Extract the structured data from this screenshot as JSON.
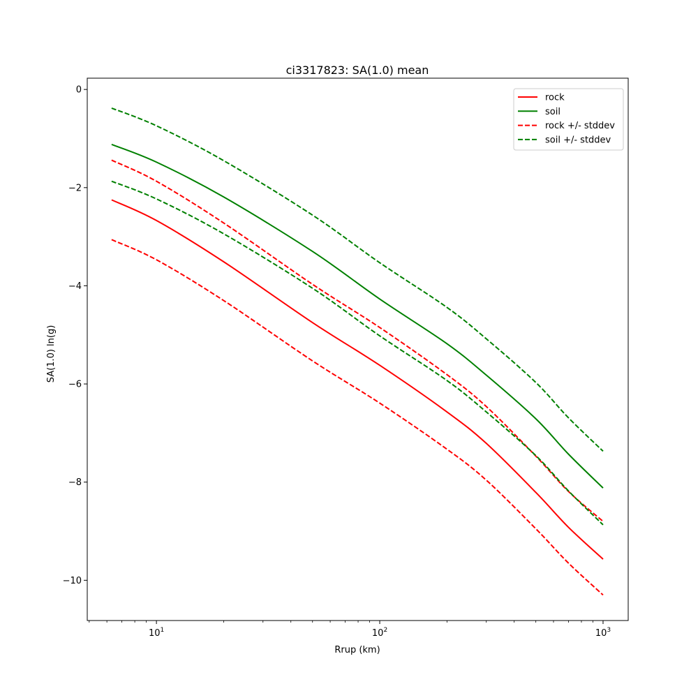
{
  "chart_data": {
    "type": "line",
    "title": "ci3317823: SA(1.0) mean",
    "xlabel": "Rrup (km)",
    "ylabel": "SA(1.0) ln(g)",
    "xscale": "log",
    "xlim": [
      4.9,
      1296
    ],
    "ylim": [
      -10.82,
      0.23
    ],
    "xticks": [
      {
        "value": 10,
        "base": "10",
        "exp": "1"
      },
      {
        "value": 100,
        "base": "10",
        "exp": "2"
      },
      {
        "value": 1000,
        "base": "10",
        "exp": "3"
      }
    ],
    "yticks": [
      {
        "value": 0,
        "label": "0"
      },
      {
        "value": -2,
        "label": "−2"
      },
      {
        "value": -4,
        "label": "−4"
      },
      {
        "value": -6,
        "label": "−6"
      },
      {
        "value": -8,
        "label": "−8"
      },
      {
        "value": -10,
        "label": "−10"
      }
    ],
    "grid": false,
    "legend_position": "top-right",
    "x": [
      6.3,
      10,
      20,
      50,
      100,
      200,
      300,
      500,
      700,
      1000
    ],
    "series": [
      {
        "name": "rock",
        "legend": true,
        "color": "#ff0000",
        "dash": false,
        "values": [
          -2.25,
          -2.67,
          -3.51,
          -4.75,
          -5.62,
          -6.57,
          -7.21,
          -8.21,
          -8.92,
          -9.57
        ]
      },
      {
        "name": "soil",
        "legend": true,
        "color": "#008000",
        "dash": false,
        "values": [
          -1.12,
          -1.48,
          -2.19,
          -3.3,
          -4.27,
          -5.18,
          -5.82,
          -6.71,
          -7.43,
          -8.12
        ]
      },
      {
        "name": "rock +/- stddev",
        "legend": true,
        "color": "#ff0000",
        "dash": true,
        "values": [
          -1.44,
          -1.87,
          -2.72,
          -3.97,
          -4.85,
          -5.81,
          -6.46,
          -7.47,
          -8.19,
          -8.8
        ]
      },
      {
        "name": "soil +/- stddev",
        "legend": true,
        "color": "#008000",
        "dash": true,
        "values": [
          -0.38,
          -0.74,
          -1.45,
          -2.56,
          -3.53,
          -4.44,
          -5.08,
          -5.97,
          -6.69,
          -7.37
        ]
      },
      {
        "name": "rock - stddev",
        "legend": false,
        "color": "#ff0000",
        "dash": true,
        "values": [
          -3.06,
          -3.47,
          -4.3,
          -5.53,
          -6.39,
          -7.33,
          -7.96,
          -8.95,
          -9.65,
          -10.3
        ]
      },
      {
        "name": "soil - stddev",
        "legend": false,
        "color": "#008000",
        "dash": true,
        "values": [
          -1.87,
          -2.23,
          -2.94,
          -4.05,
          -5.02,
          -5.93,
          -6.57,
          -7.46,
          -8.18,
          -8.87
        ]
      }
    ]
  }
}
